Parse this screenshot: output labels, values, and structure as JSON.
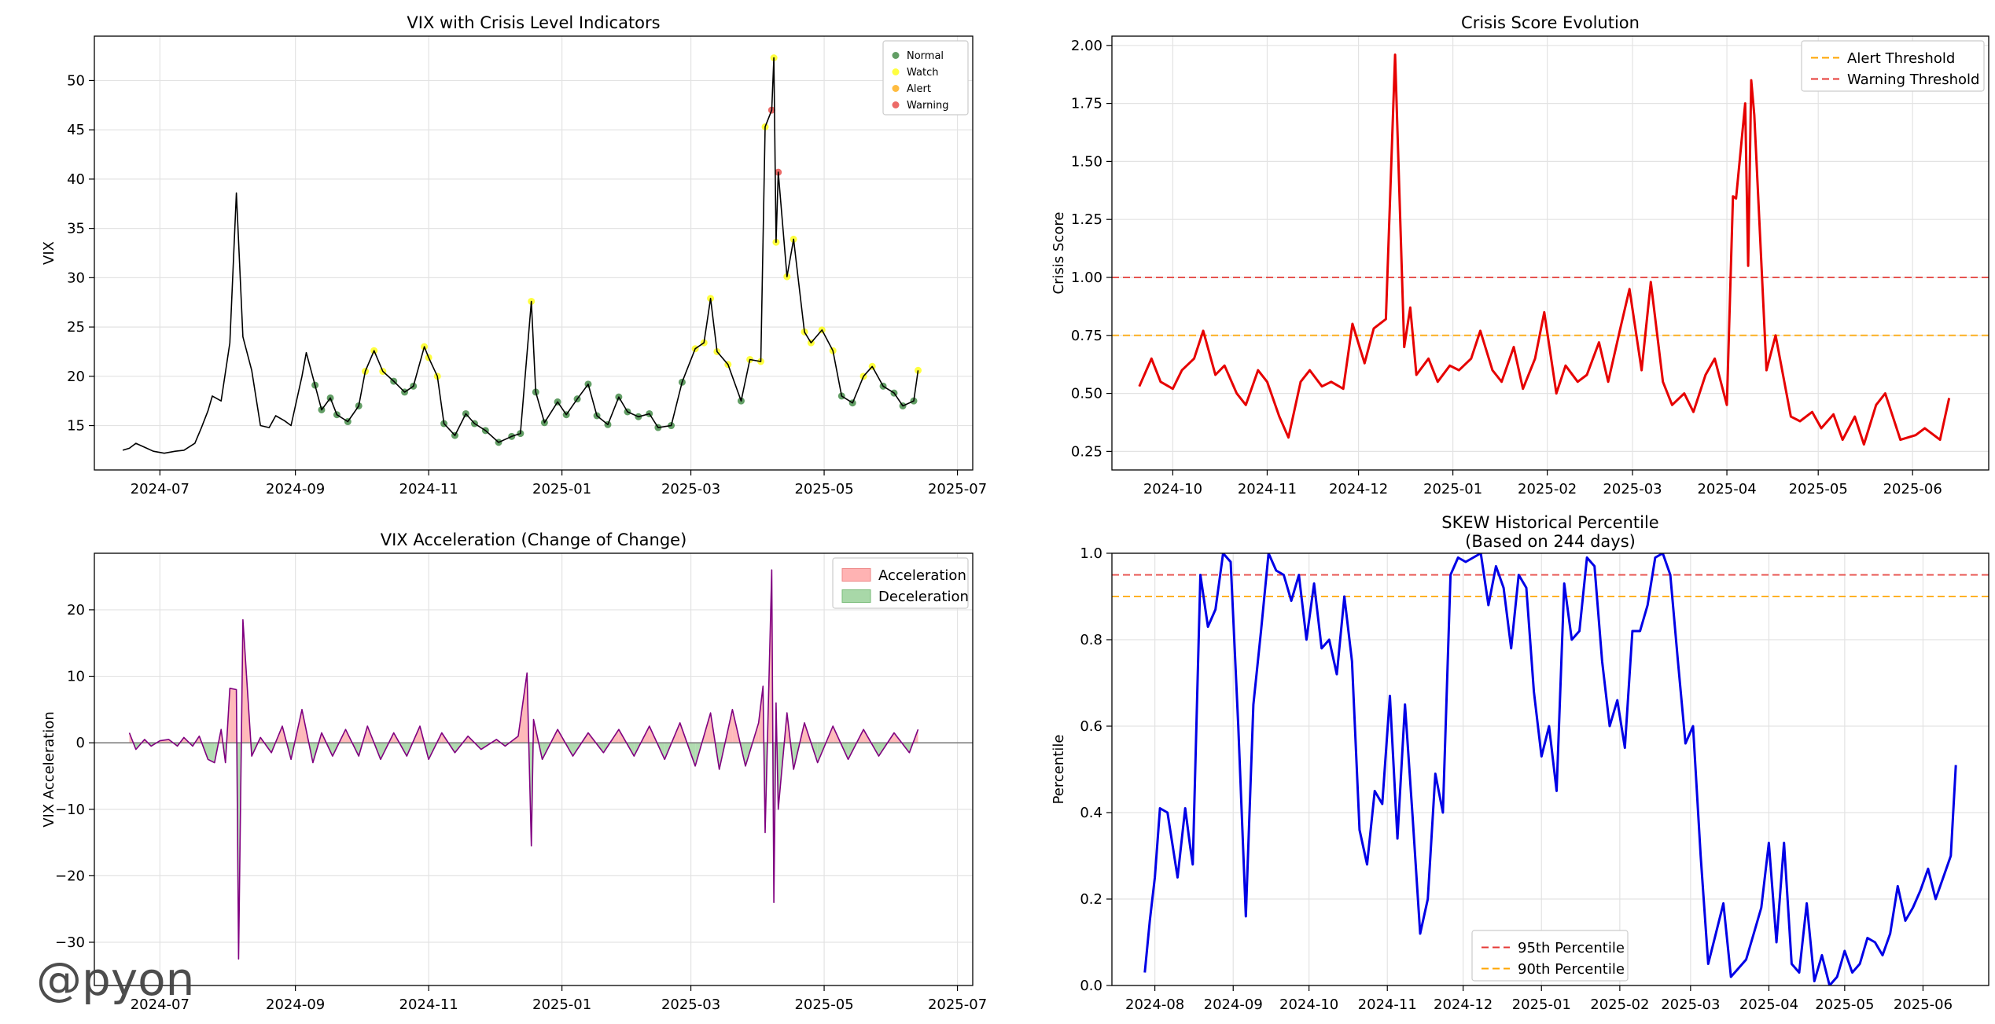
{
  "watermark": "@pyon",
  "colors": {
    "vix_line": "#000000",
    "normal": "#2e7d32",
    "watch": "#ffff00",
    "alert": "#ffa500",
    "warning": "#e53935",
    "crisis_line": "#e60000",
    "accel_line": "#800080",
    "accel_pos": "#ffb3b3",
    "accel_neg": "#a8d8a8",
    "pct_line": "#0000e6",
    "threshold_95": "#e53935",
    "threshold_90": "#ffa500"
  },
  "chart_data": [
    {
      "type": "line",
      "title": "VIX with Crisis Level Indicators",
      "xlabel": "",
      "ylabel": "VIX",
      "xlim": [
        "2024-06-01",
        "2025-07-08"
      ],
      "ylim": [
        10.5,
        54.5
      ],
      "xticks": [
        "2024-07",
        "2024-09",
        "2024-11",
        "2025-01",
        "2025-03",
        "2025-05",
        "2025-07"
      ],
      "yticks": [
        15,
        20,
        25,
        30,
        35,
        40,
        45,
        50
      ],
      "grid": true,
      "legend": {
        "position": "top-right",
        "entries": [
          "Normal",
          "Watch",
          "Alert",
          "Warning"
        ]
      },
      "series": [
        {
          "name": "VIX",
          "x": [],
          "values": []
        }
      ],
      "points": [],
      "_x": [
        "2024-06-14",
        "2024-06-17",
        "2024-06-20",
        "2024-06-24",
        "2024-06-28",
        "2024-07-03",
        "2024-07-08",
        "2024-07-12",
        "2024-07-17",
        "2024-07-20",
        "2024-07-23",
        "2024-07-25",
        "2024-07-29",
        "2024-08-02",
        "2024-08-05",
        "2024-08-08",
        "2024-08-12",
        "2024-08-16",
        "2024-08-20",
        "2024-08-23",
        "2024-08-27",
        "2024-08-30",
        "2024-09-04",
        "2024-09-06",
        "2024-09-10",
        "2024-09-13",
        "2024-09-17",
        "2024-09-20",
        "2024-09-25",
        "2024-09-30",
        "2024-10-03",
        "2024-10-07",
        "2024-10-11",
        "2024-10-16",
        "2024-10-21",
        "2024-10-25",
        "2024-10-30",
        "2024-11-01",
        "2024-11-05",
        "2024-11-08",
        "2024-11-13",
        "2024-11-18",
        "2024-11-22",
        "2024-11-27",
        "2024-12-03",
        "2024-12-09",
        "2024-12-13",
        "2024-12-18",
        "2024-12-20",
        "2024-12-24",
        "2024-12-30",
        "2025-01-03",
        "2025-01-08",
        "2025-01-13",
        "2025-01-17",
        "2025-01-22",
        "2025-01-27",
        "2025-01-31",
        "2025-02-05",
        "2025-02-10",
        "2025-02-14",
        "2025-02-20",
        "2025-02-25",
        "2025-03-03",
        "2025-03-07",
        "2025-03-10",
        "2025-03-13",
        "2025-03-18",
        "2025-03-24",
        "2025-03-28",
        "2025-04-02",
        "2025-04-04",
        "2025-04-07",
        "2025-04-08",
        "2025-04-09",
        "2025-04-10",
        "2025-04-14",
        "2025-04-17",
        "2025-04-22",
        "2025-04-25",
        "2025-04-30",
        "2025-05-05",
        "2025-05-09",
        "2025-05-14",
        "2025-05-19",
        "2025-05-23",
        "2025-05-28",
        "2025-06-02",
        "2025-06-06",
        "2025-06-11",
        "2025-06-13"
      ],
      "_y": [
        12.5,
        12.7,
        13.2,
        12.8,
        12.4,
        12.2,
        12.4,
        12.5,
        13.2,
        14.8,
        16.5,
        18.0,
        17.5,
        23.4,
        38.6,
        24.0,
        20.6,
        15.0,
        14.8,
        16.0,
        15.5,
        15.0,
        20.0,
        22.4,
        19.1,
        16.6,
        17.8,
        16.1,
        15.4,
        17.0,
        20.5,
        22.6,
        20.5,
        19.5,
        18.4,
        19.0,
        23.0,
        21.9,
        20.0,
        15.2,
        14.0,
        16.2,
        15.2,
        14.5,
        13.3,
        13.9,
        14.2,
        27.6,
        18.4,
        15.3,
        17.4,
        16.1,
        17.7,
        19.2,
        16.0,
        15.1,
        17.9,
        16.4,
        15.9,
        16.2,
        14.8,
        15.0,
        19.4,
        22.8,
        23.4,
        27.9,
        22.5,
        21.2,
        17.5,
        21.7,
        21.5,
        45.3,
        47.0,
        52.3,
        33.6,
        40.7,
        30.1,
        33.9,
        24.5,
        23.4,
        24.7,
        22.6,
        18.0,
        17.3,
        20.0,
        21.0,
        19.0,
        18.3,
        17.0,
        17.5,
        20.6
      ]
    },
    {
      "type": "line",
      "title": "Crisis Score Evolution",
      "xlabel": "",
      "ylabel": "Crisis Score",
      "xlim": [
        "2024-09-11",
        "2025-06-26"
      ],
      "ylim": [
        0.17,
        2.04
      ],
      "xticks": [
        "2024-10",
        "2024-11",
        "2024-12",
        "2025-01",
        "2025-02",
        "2025-03",
        "2025-04",
        "2025-05",
        "2025-06"
      ],
      "yticks": [
        0.25,
        0.5,
        0.75,
        1.0,
        1.25,
        1.5,
        1.75,
        2.0
      ],
      "yticklabels": [
        "0.25",
        "0.50",
        "0.75",
        "1.00",
        "1.25",
        "1.50",
        "1.75",
        "2.00"
      ],
      "grid": true,
      "thresholds": [
        {
          "name": "Alert Threshold",
          "value": 0.75
        },
        {
          "name": "Warning Threshold",
          "value": 1.0
        }
      ],
      "legend": {
        "position": "top-right",
        "entries": [
          "Alert Threshold",
          "Warning Threshold"
        ]
      },
      "x": [
        "2024-09-20",
        "2024-09-24",
        "2024-09-27",
        "2024-10-01",
        "2024-10-04",
        "2024-10-08",
        "2024-10-11",
        "2024-10-15",
        "2024-10-18",
        "2024-10-22",
        "2024-10-25",
        "2024-10-29",
        "2024-11-01",
        "2024-11-05",
        "2024-11-08",
        "2024-11-12",
        "2024-11-15",
        "2024-11-19",
        "2024-11-22",
        "2024-11-26",
        "2024-11-29",
        "2024-12-03",
        "2024-12-06",
        "2024-12-10",
        "2024-12-13",
        "2024-12-16",
        "2024-12-18",
        "2024-12-20",
        "2024-12-24",
        "2024-12-27",
        "2024-12-31",
        "2025-01-03",
        "2025-01-07",
        "2025-01-10",
        "2025-01-14",
        "2025-01-17",
        "2025-01-21",
        "2025-01-24",
        "2025-01-28",
        "2025-01-31",
        "2025-02-04",
        "2025-02-07",
        "2025-02-11",
        "2025-02-14",
        "2025-02-18",
        "2025-02-21",
        "2025-02-25",
        "2025-02-28",
        "2025-03-04",
        "2025-03-07",
        "2025-03-11",
        "2025-03-14",
        "2025-03-18",
        "2025-03-21",
        "2025-03-25",
        "2025-03-28",
        "2025-04-01",
        "2025-04-03",
        "2025-04-04",
        "2025-04-07",
        "2025-04-08",
        "2025-04-09",
        "2025-04-10",
        "2025-04-14",
        "2025-04-17",
        "2025-04-22",
        "2025-04-25",
        "2025-04-29",
        "2025-05-02",
        "2025-05-06",
        "2025-05-09",
        "2025-05-13",
        "2025-05-16",
        "2025-05-20",
        "2025-05-23",
        "2025-05-28",
        "2025-06-02",
        "2025-06-05",
        "2025-06-10",
        "2025-06-13"
      ],
      "values": [
        0.53,
        0.65,
        0.55,
        0.52,
        0.6,
        0.65,
        0.77,
        0.58,
        0.62,
        0.5,
        0.45,
        0.6,
        0.55,
        0.4,
        0.31,
        0.55,
        0.6,
        0.53,
        0.55,
        0.52,
        0.8,
        0.63,
        0.78,
        0.82,
        1.96,
        0.7,
        0.87,
        0.58,
        0.65,
        0.55,
        0.62,
        0.6,
        0.65,
        0.77,
        0.6,
        0.55,
        0.7,
        0.52,
        0.65,
        0.85,
        0.5,
        0.62,
        0.55,
        0.58,
        0.72,
        0.55,
        0.78,
        0.95,
        0.6,
        0.98,
        0.55,
        0.45,
        0.5,
        0.42,
        0.58,
        0.65,
        0.45,
        1.35,
        1.34,
        1.75,
        1.05,
        1.85,
        1.7,
        0.6,
        0.75,
        0.4,
        0.38,
        0.42,
        0.35,
        0.41,
        0.3,
        0.4,
        0.28,
        0.45,
        0.5,
        0.3,
        0.32,
        0.35,
        0.3,
        0.48
      ]
    },
    {
      "type": "area",
      "title": "VIX Acceleration (Change of Change)",
      "xlabel": "",
      "ylabel": "VIX Acceleration",
      "xlim": [
        "2024-06-01",
        "2025-07-08"
      ],
      "ylim": [
        -36.5,
        28.5
      ],
      "xticks": [
        "2024-07",
        "2024-09",
        "2024-11",
        "2025-01",
        "2025-03",
        "2025-05",
        "2025-07"
      ],
      "yticks": [
        -30,
        -20,
        -10,
        0,
        10,
        20
      ],
      "yticklabels": [
        "−30",
        "−20",
        "−10",
        "0",
        "10",
        "20"
      ],
      "grid": true,
      "legend": {
        "position": "top-right",
        "entries": [
          "Acceleration",
          "Deceleration"
        ]
      },
      "x": [
        "2024-06-17",
        "2024-06-20",
        "2024-06-24",
        "2024-06-27",
        "2024-07-01",
        "2024-07-05",
        "2024-07-09",
        "2024-07-12",
        "2024-07-16",
        "2024-07-19",
        "2024-07-23",
        "2024-07-26",
        "2024-07-29",
        "2024-07-31",
        "2024-08-02",
        "2024-08-05",
        "2024-08-06",
        "2024-08-08",
        "2024-08-12",
        "2024-08-16",
        "2024-08-21",
        "2024-08-26",
        "2024-08-30",
        "2024-09-04",
        "2024-09-09",
        "2024-09-13",
        "2024-09-18",
        "2024-09-24",
        "2024-09-30",
        "2024-10-04",
        "2024-10-10",
        "2024-10-16",
        "2024-10-22",
        "2024-10-28",
        "2024-11-01",
        "2024-11-07",
        "2024-11-13",
        "2024-11-19",
        "2024-11-25",
        "2024-12-02",
        "2024-12-06",
        "2024-12-12",
        "2024-12-16",
        "2024-12-18",
        "2024-12-19",
        "2024-12-23",
        "2024-12-30",
        "2025-01-06",
        "2025-01-13",
        "2025-01-20",
        "2025-01-27",
        "2025-02-03",
        "2025-02-10",
        "2025-02-17",
        "2025-02-24",
        "2025-03-03",
        "2025-03-10",
        "2025-03-14",
        "2025-03-20",
        "2025-03-26",
        "2025-04-01",
        "2025-04-03",
        "2025-04-04",
        "2025-04-07",
        "2025-04-08",
        "2025-04-09",
        "2025-04-10",
        "2025-04-14",
        "2025-04-17",
        "2025-04-22",
        "2025-04-28",
        "2025-05-05",
        "2025-05-12",
        "2025-05-19",
        "2025-05-26",
        "2025-06-02",
        "2025-06-09",
        "2025-06-13"
      ],
      "values": [
        1.5,
        -1.0,
        0.5,
        -0.5,
        0.3,
        0.5,
        -0.5,
        0.8,
        -0.5,
        1.0,
        -2.5,
        -3.0,
        2.0,
        -3.0,
        8.2,
        8.0,
        -32.5,
        18.5,
        -2.0,
        0.8,
        -1.5,
        2.5,
        -2.5,
        5.0,
        -3.0,
        1.5,
        -2.0,
        2.0,
        -2.0,
        2.5,
        -2.5,
        1.5,
        -2.0,
        2.5,
        -2.5,
        1.5,
        -1.5,
        1.0,
        -1.0,
        0.5,
        -0.5,
        1.0,
        10.5,
        -15.5,
        3.5,
        -2.5,
        2.0,
        -2.0,
        1.5,
        -1.5,
        2.0,
        -2.0,
        2.5,
        -2.5,
        3.0,
        -3.5,
        4.5,
        -4.0,
        5.0,
        -3.5,
        3.0,
        8.5,
        -13.5,
        26.0,
        -24.0,
        6.0,
        -10.0,
        4.5,
        -4.0,
        3.0,
        -3.0,
        2.5,
        -2.5,
        2.0,
        -2.0,
        1.5,
        -1.5,
        2.0
      ]
    },
    {
      "type": "line",
      "title": "SKEW Historical Percentile",
      "subtitle": "(Based on 244 days)",
      "xlabel": "",
      "ylabel": "Percentile",
      "xlim": [
        "2024-07-15",
        "2025-06-27"
      ],
      "ylim": [
        0.0,
        1.0
      ],
      "xticks": [
        "2024-08",
        "2024-09",
        "2024-10",
        "2024-11",
        "2024-12",
        "2025-01",
        "2025-02",
        "2025-03",
        "2025-04",
        "2025-05",
        "2025-06"
      ],
      "yticks": [
        0.0,
        0.2,
        0.4,
        0.6,
        0.8,
        1.0
      ],
      "yticklabels": [
        "0.0",
        "0.2",
        "0.4",
        "0.6",
        "0.8",
        "1.0"
      ],
      "grid": true,
      "thresholds": [
        {
          "name": "95th Percentile",
          "value": 0.95
        },
        {
          "name": "90th Percentile",
          "value": 0.9
        }
      ],
      "legend": {
        "position": "bottom-center",
        "entries": [
          "95th Percentile",
          "90th Percentile"
        ]
      },
      "x": [
        "2024-07-28",
        "2024-07-30",
        "2024-08-01",
        "2024-08-03",
        "2024-08-06",
        "2024-08-10",
        "2024-08-13",
        "2024-08-15",
        "2024-08-16",
        "2024-08-19",
        "2024-08-22",
        "2024-08-25",
        "2024-08-28",
        "2024-08-31",
        "2024-09-03",
        "2024-09-06",
        "2024-09-09",
        "2024-09-12",
        "2024-09-15",
        "2024-09-18",
        "2024-09-21",
        "2024-09-24",
        "2024-09-27",
        "2024-09-30",
        "2024-10-03",
        "2024-10-06",
        "2024-10-09",
        "2024-10-12",
        "2024-10-15",
        "2024-10-18",
        "2024-10-21",
        "2024-10-24",
        "2024-10-27",
        "2024-10-30",
        "2024-11-02",
        "2024-11-05",
        "2024-11-08",
        "2024-11-11",
        "2024-11-14",
        "2024-11-17",
        "2024-11-20",
        "2024-11-23",
        "2024-11-26",
        "2024-11-29",
        "2024-12-02",
        "2024-12-05",
        "2024-12-08",
        "2024-12-11",
        "2024-12-14",
        "2024-12-17",
        "2024-12-20",
        "2024-12-23",
        "2024-12-26",
        "2024-12-29",
        "2025-01-01",
        "2025-01-04",
        "2025-01-07",
        "2025-01-10",
        "2025-01-13",
        "2025-01-16",
        "2025-01-19",
        "2025-01-22",
        "2025-01-25",
        "2025-01-28",
        "2025-01-31",
        "2025-02-03",
        "2025-02-06",
        "2025-02-09",
        "2025-02-12",
        "2025-02-15",
        "2025-02-18",
        "2025-02-21",
        "2025-02-24",
        "2025-02-27",
        "2025-03-02",
        "2025-03-05",
        "2025-03-08",
        "2025-03-11",
        "2025-03-14",
        "2025-03-17",
        "2025-03-20",
        "2025-03-23",
        "2025-03-26",
        "2025-03-29",
        "2025-04-01",
        "2025-04-04",
        "2025-04-07",
        "2025-04-10",
        "2025-04-13",
        "2025-04-16",
        "2025-04-19",
        "2025-04-22",
        "2025-04-25",
        "2025-04-28",
        "2025-05-01",
        "2025-05-04",
        "2025-05-07",
        "2025-05-10",
        "2025-05-13",
        "2025-05-16",
        "2025-05-19",
        "2025-05-22",
        "2025-05-25",
        "2025-05-28",
        "2025-05-31",
        "2025-06-03",
        "2025-06-06",
        "2025-06-09",
        "2025-06-12",
        "2025-06-14"
      ],
      "values": [
        0.03,
        0.15,
        0.25,
        0.41,
        0.4,
        0.25,
        0.41,
        0.32,
        0.28,
        0.95,
        0.83,
        0.87,
        1.0,
        0.98,
        0.6,
        0.16,
        0.65,
        0.82,
        1.0,
        0.96,
        0.95,
        0.89,
        0.95,
        0.8,
        0.93,
        0.78,
        0.8,
        0.72,
        0.9,
        0.75,
        0.36,
        0.28,
        0.45,
        0.42,
        0.67,
        0.34,
        0.65,
        0.39,
        0.12,
        0.2,
        0.49,
        0.4,
        0.95,
        0.99,
        0.98,
        0.99,
        1.0,
        0.88,
        0.97,
        0.92,
        0.78,
        0.95,
        0.92,
        0.68,
        0.53,
        0.6,
        0.45,
        0.93,
        0.8,
        0.82,
        0.99,
        0.97,
        0.75,
        0.6,
        0.66,
        0.55,
        0.82,
        0.82,
        0.88,
        0.99,
        1.0,
        0.95,
        0.75,
        0.56,
        0.6,
        0.3,
        0.05,
        0.12,
        0.19,
        0.02,
        0.04,
        0.06,
        0.12,
        0.18,
        0.33,
        0.1,
        0.33,
        0.05,
        0.03,
        0.19,
        0.01,
        0.07,
        0.0,
        0.02,
        0.08,
        0.03,
        0.05,
        0.11,
        0.1,
        0.07,
        0.12,
        0.23,
        0.15,
        0.18,
        0.22,
        0.27,
        0.2,
        0.25,
        0.3,
        0.51
      ]
    }
  ]
}
